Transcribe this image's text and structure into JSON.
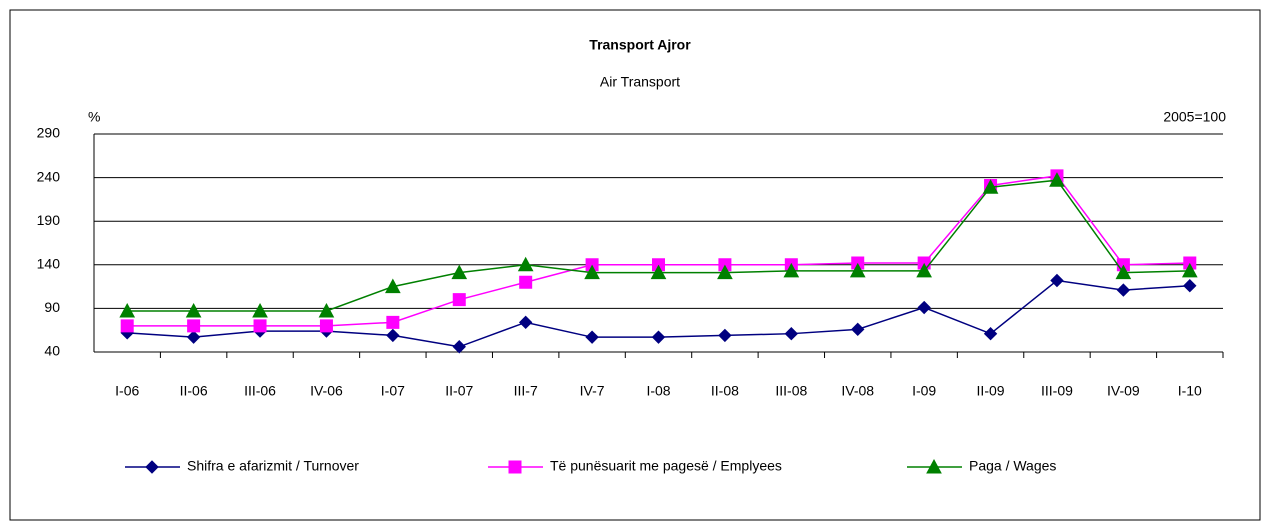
{
  "chart_data": {
    "type": "line",
    "title": "Transport Ajror",
    "subtitle": "Air Transport",
    "y_label": "%",
    "annotation": "2005=100",
    "categories": [
      "I-06",
      "II-06",
      "III-06",
      "IV-06",
      "I-07",
      "II-07",
      "III-7",
      "IV-7",
      "I-08",
      "II-08",
      "III-08",
      "IV-08",
      "I-09",
      "II-09",
      "III-09",
      "IV-09",
      "I-10"
    ],
    "series": [
      {
        "name": "Shifra e afarizmit / Turnover",
        "color": "#000080",
        "marker": "diamond",
        "values": [
          62,
          57,
          64,
          64,
          59,
          46,
          74,
          57,
          57,
          59,
          61,
          66,
          91,
          61,
          122,
          111,
          116
        ]
      },
      {
        "name": "Të punësuarit me pagesë / Emplyees",
        "color": "#ff00ff",
        "marker": "square",
        "values": [
          70,
          70,
          70,
          70,
          74,
          100,
          120,
          140,
          140,
          140,
          140,
          142,
          142,
          231,
          242,
          140,
          142
        ]
      },
      {
        "name": "Paga / Wages",
        "color": "#008000",
        "marker": "triangle",
        "values": [
          87,
          87,
          87,
          87,
          115,
          131,
          140,
          131,
          131,
          131,
          133,
          133,
          133,
          229,
          237,
          131,
          133
        ]
      }
    ],
    "ylim": [
      40,
      290
    ],
    "yticks": [
      40,
      90,
      140,
      190,
      240,
      290
    ],
    "grid": true,
    "legend": "bottom"
  }
}
